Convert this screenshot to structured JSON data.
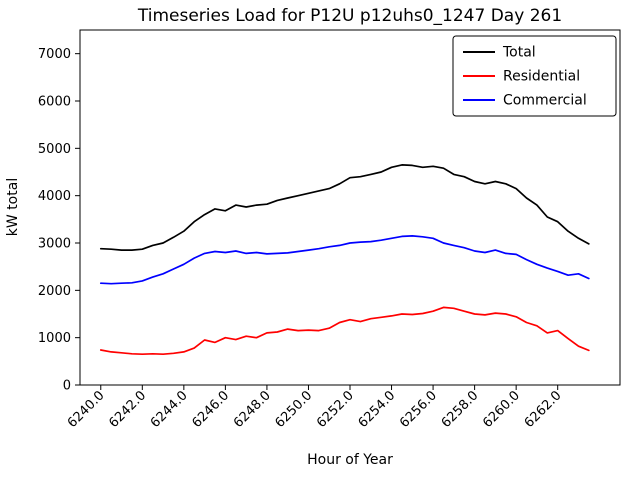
{
  "chart_data": {
    "type": "line",
    "title": "Timeseries Load for P12U p12uhs0_1247  Day 261",
    "xlabel": "Hour of Year",
    "ylabel": "kW total",
    "xlim": [
      6239.0,
      6265.0
    ],
    "ylim": [
      0,
      7500
    ],
    "xticks": [
      6240,
      6242,
      6244,
      6246,
      6248,
      6250,
      6252,
      6254,
      6256,
      6258,
      6260,
      6262
    ],
    "xtick_labels": [
      "6240.0",
      "6242.0",
      "6244.0",
      "6246.0",
      "6248.0",
      "6250.0",
      "6252.0",
      "6254.0",
      "6256.0",
      "6258.0",
      "6260.0",
      "6262.0"
    ],
    "yticks": [
      0,
      1000,
      2000,
      3000,
      4000,
      5000,
      6000,
      7000
    ],
    "ytick_labels": [
      "0",
      "1000",
      "2000",
      "3000",
      "4000",
      "5000",
      "6000",
      "7000"
    ],
    "grid": false,
    "legend_position": "upper right",
    "x": [
      6240.0,
      6240.5,
      6241.0,
      6241.5,
      6242.0,
      6242.5,
      6243.0,
      6243.5,
      6244.0,
      6244.5,
      6245.0,
      6245.5,
      6246.0,
      6246.5,
      6247.0,
      6247.5,
      6248.0,
      6248.5,
      6249.0,
      6249.5,
      6250.0,
      6250.5,
      6251.0,
      6251.5,
      6252.0,
      6252.5,
      6253.0,
      6253.5,
      6254.0,
      6254.5,
      6255.0,
      6255.5,
      6256.0,
      6256.5,
      6257.0,
      6257.5,
      6258.0,
      6258.5,
      6259.0,
      6259.5,
      6260.0,
      6260.5,
      6261.0,
      6261.5,
      6262.0,
      6262.5,
      6263.0,
      6263.5
    ],
    "series": [
      {
        "name": "Total",
        "color": "#000000",
        "values": [
          2880,
          2870,
          2850,
          2850,
          2870,
          2950,
          3000,
          3120,
          3250,
          3450,
          3600,
          3720,
          3680,
          3800,
          3760,
          3800,
          3820,
          3900,
          3950,
          4000,
          4050,
          4100,
          4150,
          4250,
          4380,
          4400,
          4450,
          4500,
          4600,
          4650,
          4640,
          4600,
          4620,
          4580,
          4450,
          4400,
          4300,
          4250,
          4300,
          4250,
          4150,
          3950,
          3800,
          3550,
          3450,
          3250,
          3100,
          2980
        ]
      },
      {
        "name": "Residential",
        "color": "#ff0000",
        "values": [
          740,
          700,
          680,
          660,
          650,
          660,
          650,
          670,
          700,
          780,
          950,
          900,
          1000,
          960,
          1030,
          1000,
          1100,
          1120,
          1180,
          1150,
          1160,
          1150,
          1200,
          1320,
          1380,
          1340,
          1400,
          1430,
          1460,
          1500,
          1490,
          1510,
          1560,
          1640,
          1620,
          1560,
          1500,
          1480,
          1520,
          1500,
          1440,
          1320,
          1250,
          1100,
          1150,
          980,
          820,
          730
        ]
      },
      {
        "name": "Commercial",
        "color": "#0000ff",
        "values": [
          2150,
          2140,
          2150,
          2160,
          2200,
          2280,
          2350,
          2450,
          2550,
          2680,
          2780,
          2820,
          2800,
          2830,
          2780,
          2800,
          2770,
          2780,
          2790,
          2820,
          2850,
          2880,
          2920,
          2950,
          3000,
          3020,
          3030,
          3060,
          3100,
          3140,
          3150,
          3130,
          3100,
          3000,
          2950,
          2900,
          2830,
          2800,
          2850,
          2780,
          2760,
          2650,
          2550,
          2470,
          2400,
          2320,
          2350,
          2250
        ]
      }
    ]
  }
}
